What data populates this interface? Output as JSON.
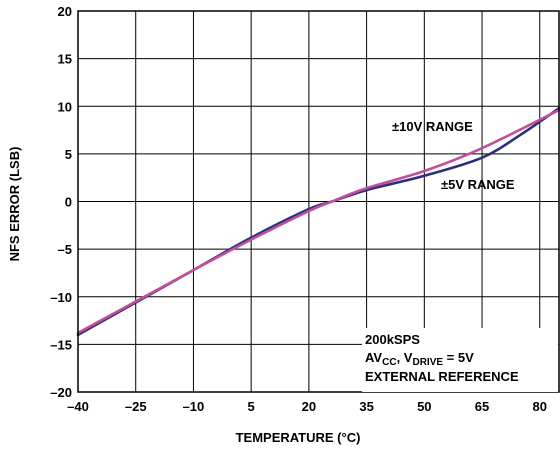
{
  "chart_data": {
    "type": "line",
    "xlabel": "TEMPERATURE (°C)",
    "ylabel": "NFS ERROR (LSB)",
    "xlim": [
      -40,
      85
    ],
    "ylim": [
      -20,
      20
    ],
    "x_ticks": [
      "–40",
      "–25",
      "–10",
      "5",
      "20",
      "35",
      "50",
      "65",
      "80"
    ],
    "y_ticks": [
      "20",
      "15",
      "10",
      "5",
      "0",
      "–5",
      "–10",
      "–15",
      "–20"
    ],
    "grid": true,
    "series": [
      {
        "name": "±10V RANGE",
        "color": "#c0509a",
        "x": [
          -40,
          -25,
          -10,
          5,
          20,
          26,
          35,
          50,
          65,
          85
        ],
        "y": [
          -13.8,
          -10.5,
          -7.2,
          -4.0,
          -1.0,
          0.0,
          1.4,
          3.2,
          5.6,
          9.6
        ]
      },
      {
        "name": "±5V RANGE",
        "color": "#2e2e7e",
        "x": [
          -40,
          -25,
          -10,
          5,
          20,
          26,
          35,
          50,
          65,
          75,
          85
        ],
        "y": [
          -14.0,
          -10.6,
          -7.2,
          -3.8,
          -0.8,
          0.0,
          1.2,
          2.7,
          4.6,
          7.0,
          9.8
        ]
      }
    ],
    "annotations": {
      "range10": "±10V RANGE",
      "range5": "±5V RANGE",
      "cond_line1": "200kSPS",
      "cond_av": "AV",
      "cond_av_sub": "CC",
      "cond_sep": ", V",
      "cond_v_sub": "DRIVE",
      "cond_eq": " = 5V",
      "cond_line3": "EXTERNAL REFERENCE"
    }
  }
}
